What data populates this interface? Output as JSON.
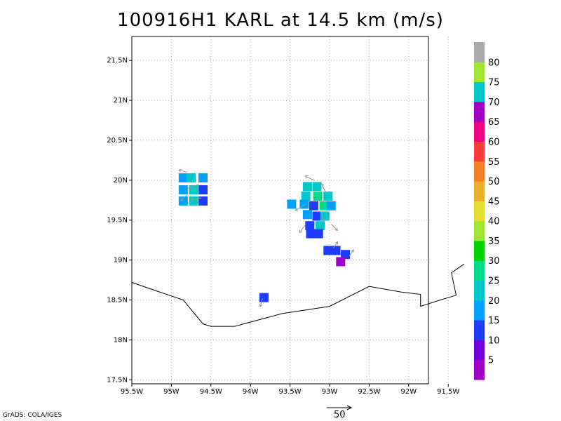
{
  "title": "100916H1 KARL at 14.5 km (m/s)",
  "credit": "GrADS: COLA/IGES",
  "vector_scale": {
    "label": "50"
  },
  "map": {
    "lon_range": [
      -95.5,
      -91.75
    ],
    "lat_range": [
      17.45,
      21.8
    ],
    "x_ticks": [
      {
        "lon": -95.5,
        "label": "95.5W"
      },
      {
        "lon": -95.0,
        "label": "95W"
      },
      {
        "lon": -94.5,
        "label": "94.5W"
      },
      {
        "lon": -94.0,
        "label": "94W"
      },
      {
        "lon": -93.5,
        "label": "93.5W"
      },
      {
        "lon": -93.0,
        "label": "93W"
      },
      {
        "lon": -92.5,
        "label": "92.5W"
      },
      {
        "lon": -92.0,
        "label": "92W"
      },
      {
        "lon": -91.5,
        "label": "91.5W"
      }
    ],
    "y_ticks": [
      {
        "lat": 17.5,
        "label": "17.5N"
      },
      {
        "lat": 18.0,
        "label": "18N"
      },
      {
        "lat": 18.5,
        "label": "18.5N"
      },
      {
        "lat": 19.0,
        "label": "19N"
      },
      {
        "lat": 19.5,
        "label": "19.5N"
      },
      {
        "lat": 20.0,
        "label": "20N"
      },
      {
        "lat": 20.5,
        "label": "20.5N"
      },
      {
        "lat": 21.0,
        "label": "21N"
      },
      {
        "lat": 21.5,
        "label": "21.5N"
      }
    ],
    "grid": true,
    "coastline": [
      [
        -95.5,
        18.72
      ],
      [
        -95.15,
        18.6
      ],
      [
        -94.85,
        18.5
      ],
      [
        -94.6,
        18.2
      ],
      [
        -94.5,
        18.17
      ],
      [
        -94.2,
        18.17
      ],
      [
        -93.6,
        18.33
      ],
      [
        -93.0,
        18.42
      ],
      [
        -92.5,
        18.67
      ],
      [
        -92.1,
        18.6
      ],
      [
        -91.85,
        18.57
      ],
      [
        -91.85,
        18.42
      ],
      [
        -91.6,
        18.5
      ],
      [
        -91.4,
        18.56
      ],
      [
        -91.46,
        18.84
      ],
      [
        -91.3,
        18.95
      ]
    ],
    "wind_cells": [
      {
        "lon": -94.85,
        "lat": 20.03,
        "speed": 20
      },
      {
        "lon": -94.75,
        "lat": 20.03,
        "speed": 22
      },
      {
        "lon": -94.6,
        "lat": 20.03,
        "speed": 16
      },
      {
        "lon": -94.85,
        "lat": 19.88,
        "speed": 17
      },
      {
        "lon": -94.72,
        "lat": 19.88,
        "speed": 21
      },
      {
        "lon": -94.6,
        "lat": 19.88,
        "speed": 15
      },
      {
        "lon": -94.85,
        "lat": 19.74,
        "speed": 19
      },
      {
        "lon": -94.72,
        "lat": 19.74,
        "speed": 22
      },
      {
        "lon": -94.6,
        "lat": 19.74,
        "speed": 14
      },
      {
        "lon": -93.28,
        "lat": 19.92,
        "speed": 22
      },
      {
        "lon": -93.16,
        "lat": 19.92,
        "speed": 23
      },
      {
        "lon": -93.3,
        "lat": 19.8,
        "speed": 24
      },
      {
        "lon": -93.15,
        "lat": 19.8,
        "speed": 26
      },
      {
        "lon": -93.02,
        "lat": 19.8,
        "speed": 25
      },
      {
        "lon": -93.48,
        "lat": 19.7,
        "speed": 20
      },
      {
        "lon": -93.32,
        "lat": 19.7,
        "speed": 19
      },
      {
        "lon": -93.2,
        "lat": 19.68,
        "speed": 15
      },
      {
        "lon": -93.07,
        "lat": 19.68,
        "speed": 27
      },
      {
        "lon": -92.98,
        "lat": 19.68,
        "speed": 18
      },
      {
        "lon": -93.28,
        "lat": 19.57,
        "speed": 17
      },
      {
        "lon": -93.16,
        "lat": 19.55,
        "speed": 13
      },
      {
        "lon": -93.06,
        "lat": 19.55,
        "speed": 24
      },
      {
        "lon": -93.25,
        "lat": 19.43,
        "speed": 15
      },
      {
        "lon": -93.12,
        "lat": 19.43,
        "speed": 22
      },
      {
        "lon": -93.24,
        "lat": 19.33,
        "speed": 14
      },
      {
        "lon": -93.14,
        "lat": 19.33,
        "speed": 14
      },
      {
        "lon": -93.02,
        "lat": 19.12,
        "speed": 14
      },
      {
        "lon": -92.92,
        "lat": 19.12,
        "speed": 15
      },
      {
        "lon": -92.8,
        "lat": 19.07,
        "speed": 14
      },
      {
        "lon": -92.86,
        "lat": 18.98,
        "speed": 9
      },
      {
        "lon": -93.83,
        "lat": 18.53,
        "speed": 15
      }
    ],
    "wind_vectors": [
      {
        "lon": -94.8,
        "lat": 20.1,
        "u": -4,
        "v": 1
      },
      {
        "lon": -94.65,
        "lat": 19.95,
        "u": -5,
        "v": -2
      },
      {
        "lon": -94.8,
        "lat": 19.82,
        "u": -3,
        "v": -3
      },
      {
        "lon": -94.62,
        "lat": 19.78,
        "u": -5,
        "v": -1
      },
      {
        "lon": -93.2,
        "lat": 20.0,
        "u": -4,
        "v": 2
      },
      {
        "lon": -93.05,
        "lat": 19.85,
        "u": -2,
        "v": 4
      },
      {
        "lon": -93.3,
        "lat": 19.7,
        "u": -5,
        "v": -3
      },
      {
        "lon": -93.1,
        "lat": 19.6,
        "u": 1,
        "v": -5
      },
      {
        "lon": -92.98,
        "lat": 19.45,
        "u": 3,
        "v": -3
      },
      {
        "lon": -93.3,
        "lat": 19.45,
        "u": -3,
        "v": -4
      },
      {
        "lon": -92.95,
        "lat": 19.15,
        "u": 2,
        "v": 3
      },
      {
        "lon": -92.75,
        "lat": 19.05,
        "u": 2,
        "v": 3
      },
      {
        "lon": -93.85,
        "lat": 18.52,
        "u": -1,
        "v": -4
      }
    ]
  },
  "colorbar": {
    "colors": [
      "#a000c8",
      "#6e00dc",
      "#1e3cff",
      "#00a0ff",
      "#00c8c8",
      "#00dc8c",
      "#00d200",
      "#a0e632",
      "#e6dc32",
      "#e6af2d",
      "#f08228",
      "#fa3c3c",
      "#f00082",
      "#a000c8",
      "#00c8c8",
      "#a0e632",
      "#aaaaaa"
    ],
    "labels": [
      "5",
      "10",
      "15",
      "20",
      "25",
      "30",
      "35",
      "40",
      "45",
      "50",
      "55",
      "60",
      "65",
      "70",
      "75",
      "80"
    ]
  },
  "speed_colors": [
    {
      "max": 10,
      "color": "#a000c8"
    },
    {
      "max": 15,
      "color": "#1e3cff"
    },
    {
      "max": 20,
      "color": "#00a0ff"
    },
    {
      "max": 25,
      "color": "#00c8c8"
    },
    {
      "max": 30,
      "color": "#00dc8c"
    }
  ]
}
